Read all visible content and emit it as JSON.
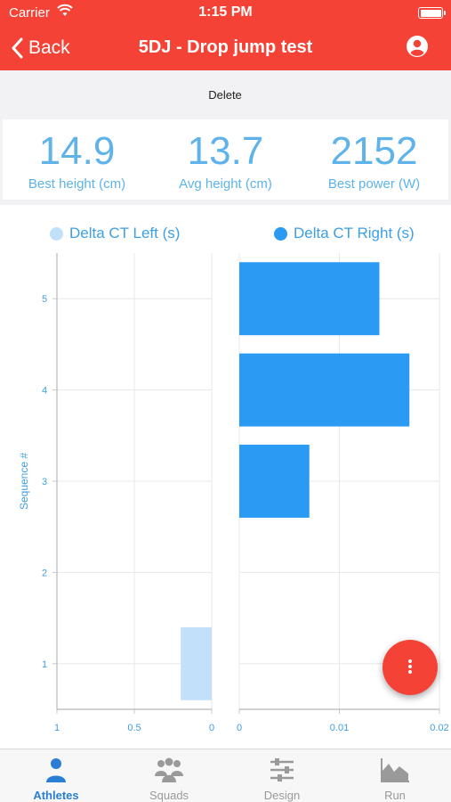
{
  "status_bar": {
    "carrier": "Carrier",
    "time": "1:15 PM"
  },
  "nav": {
    "back_label": "Back",
    "title": "5DJ - Drop jump test"
  },
  "actions": {
    "delete_label": "Delete"
  },
  "stats": [
    {
      "value": "14.9",
      "label": "Best height (cm)"
    },
    {
      "value": "13.7",
      "label": "Avg height (cm)"
    },
    {
      "value": "2152",
      "label": "Best power (W)"
    }
  ],
  "colors": {
    "primary": "#f44336",
    "accent": "#2b9af3",
    "left_series": "#c2e0fa",
    "text_blue": "#3c9fe4",
    "stats_blue": "#5db3ea",
    "tab_active": "#2a7fd4"
  },
  "chart_data": {
    "type": "bar",
    "orientation": "horizontal",
    "ylabel": "Sequence #",
    "categories": [
      1,
      2,
      3,
      4,
      5
    ],
    "series": [
      {
        "name": "Delta CT Left (s)",
        "values": [
          0.2,
          0,
          0,
          0,
          0
        ],
        "xlim": [
          1,
          0
        ],
        "ticks": [
          "1",
          "0.5",
          "0"
        ]
      },
      {
        "name": "Delta CT Right (s)",
        "values": [
          0,
          0,
          0.007,
          0.017,
          0.014
        ],
        "xlim": [
          0,
          0.02
        ],
        "ticks": [
          "0",
          "0.01",
          "0.02"
        ]
      }
    ],
    "grid": true,
    "legend": "top"
  },
  "fab": {
    "icon": "more-vertical-icon"
  },
  "tabs": [
    {
      "label": "Athletes",
      "icon": "athlete-icon",
      "active": true
    },
    {
      "label": "Squads",
      "icon": "squad-icon",
      "active": false
    },
    {
      "label": "Design",
      "icon": "sliders-icon",
      "active": false
    },
    {
      "label": "Run",
      "icon": "area-chart-icon",
      "active": false
    }
  ]
}
